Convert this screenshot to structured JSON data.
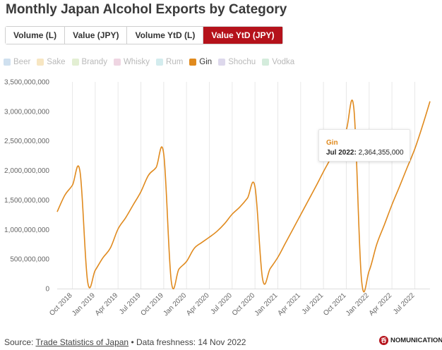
{
  "title": "Monthly Japan Alcohol Exports by Category",
  "tabs": [
    {
      "label": "Volume (L)",
      "active": false
    },
    {
      "label": "Value (JPY)",
      "active": false
    },
    {
      "label": "Volume YtD (L)",
      "active": false
    },
    {
      "label": "Value YtD (JPY)",
      "active": true
    }
  ],
  "colors": {
    "accent": "#b5121b",
    "gin": "#e08a1e"
  },
  "legend": [
    {
      "label": "Beer",
      "color": "#cfe0ef",
      "active": false
    },
    {
      "label": "Sake",
      "color": "#f7e6c2",
      "active": false
    },
    {
      "label": "Brandy",
      "color": "#e3efd3",
      "active": false
    },
    {
      "label": "Whisky",
      "color": "#efd5e2",
      "active": false
    },
    {
      "label": "Rum",
      "color": "#d3ecee",
      "active": false
    },
    {
      "label": "Gin",
      "color": "#e08a1e",
      "active": true
    },
    {
      "label": "Shochu",
      "color": "#ddd8ec",
      "active": false
    },
    {
      "label": "Vodka",
      "color": "#d4ecdc",
      "active": false
    }
  ],
  "tooltip": {
    "series": "Gin",
    "date": "Jul 2022:",
    "value": "2,364,355,000"
  },
  "footer": {
    "source_prefix": "Source:",
    "source_link": "Trade Statistics of Japan",
    "freshness": "• Data freshness: 14 Nov 2022"
  },
  "brand": {
    "name": "NOMUNICATION",
    "mark": "呑"
  },
  "chart_data": {
    "type": "line",
    "xlabel": "",
    "ylabel": "",
    "ylim": [
      0,
      3500000000
    ],
    "yticks": [
      0,
      500000000,
      1000000000,
      1500000000,
      2000000000,
      2500000000,
      3000000000,
      3500000000
    ],
    "ytick_labels": [
      "0",
      "500,000,000",
      "1,000,000,000",
      "1,500,000,000",
      "2,000,000,000",
      "2,500,000,000",
      "3,000,000,000",
      "3,500,000,000"
    ],
    "xtick_labels": [
      "Oct 2018",
      "Jan 2019",
      "Apr 2019",
      "Jul 2019",
      "Oct 2019",
      "Jan 2020",
      "Apr 2020",
      "Jul 2020",
      "Oct 2020",
      "Jan 2021",
      "Apr 2021",
      "Jul 2021",
      "Oct 2021",
      "Jan 2022",
      "Apr 2022",
      "Jul 2022"
    ],
    "grid": "vertical",
    "series": [
      {
        "name": "Gin",
        "color": "#e08a1e",
        "x": [
          "Aug 2018",
          "Sep 2018",
          "Oct 2018",
          "Nov 2018",
          "Dec 2018",
          "Jan 2019",
          "Feb 2019",
          "Mar 2019",
          "Apr 2019",
          "May 2019",
          "Jun 2019",
          "Jul 2019",
          "Aug 2019",
          "Sep 2019",
          "Oct 2019",
          "Nov 2019",
          "Dec 2019",
          "Jan 2020",
          "Feb 2020",
          "Mar 2020",
          "Apr 2020",
          "May 2020",
          "Jun 2020",
          "Jul 2020",
          "Aug 2020",
          "Sep 2020",
          "Oct 2020",
          "Nov 2020",
          "Dec 2020",
          "Jan 2021",
          "Feb 2021",
          "Mar 2021",
          "Apr 2021",
          "May 2021",
          "Jun 2021",
          "Jul 2021",
          "Aug 2021",
          "Sep 2021",
          "Oct 2021",
          "Nov 2021",
          "Dec 2021",
          "Jan 2022",
          "Feb 2022",
          "Mar 2022",
          "Apr 2022",
          "May 2022",
          "Jun 2022",
          "Jul 2022",
          "Aug 2022",
          "Sep 2022"
        ],
        "values": [
          1300000000,
          1580000000,
          1750000000,
          1980000000,
          120000000,
          310000000,
          520000000,
          690000000,
          1010000000,
          1200000000,
          1420000000,
          1640000000,
          1920000000,
          2050000000,
          2280000000,
          120000000,
          330000000,
          460000000,
          680000000,
          780000000,
          870000000,
          970000000,
          1100000000,
          1260000000,
          1380000000,
          1530000000,
          1720000000,
          160000000,
          340000000,
          530000000,
          770000000,
          1010000000,
          1250000000,
          1490000000,
          1730000000,
          1980000000,
          2220000000,
          2500000000,
          2690000000,
          3040000000,
          150000000,
          300000000,
          750000000,
          1080000000,
          1420000000,
          1730000000,
          2050000000,
          2364355000,
          2750000000,
          3170000000
        ]
      }
    ]
  }
}
